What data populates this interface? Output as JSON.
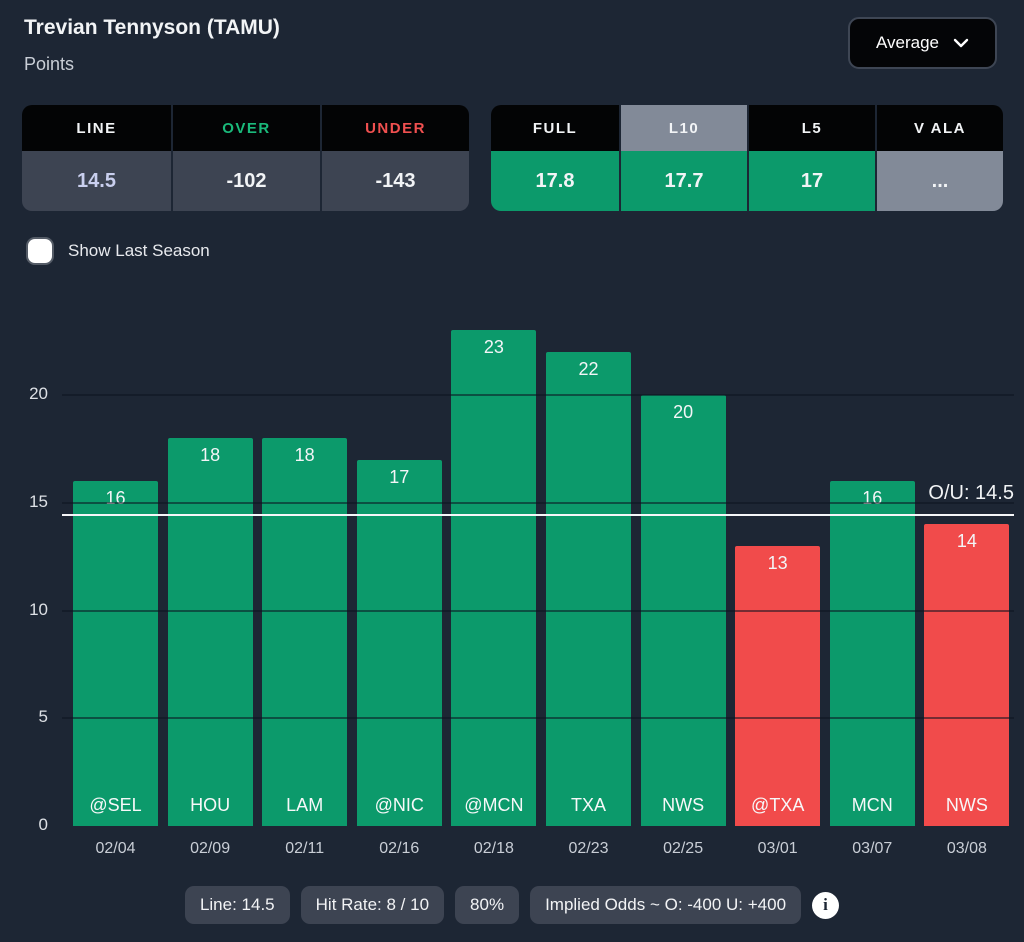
{
  "header": {
    "player": "Trevian Tennyson (TAMU)",
    "stat": "Points",
    "dropdown_label": "Average"
  },
  "odds_table": {
    "columns": [
      {
        "label": "LINE",
        "label_color": "#f2f4f6",
        "value": "14.5",
        "value_color": "#c9cfee"
      },
      {
        "label": "OVER",
        "label_color": "#1aba7b",
        "value": "-102",
        "value_color": "#f2f4f6"
      },
      {
        "label": "UNDER",
        "label_color": "#f05050",
        "value": "-143",
        "value_color": "#f2f4f6"
      }
    ]
  },
  "splits_table": {
    "columns": [
      {
        "label": "FULL",
        "selected": false,
        "value": "17.8",
        "value_state": "over"
      },
      {
        "label": "L10",
        "selected": true,
        "value": "17.7",
        "value_state": "over"
      },
      {
        "label": "L5",
        "selected": false,
        "value": "17",
        "value_state": "over"
      },
      {
        "label": "V ALA",
        "selected": false,
        "value": "...",
        "value_state": "muted"
      }
    ]
  },
  "toggle": {
    "label": "Show Last Season",
    "checked": false
  },
  "chart_data": {
    "type": "bar",
    "title": "Trevian Tennyson (TAMU) — Points by game",
    "categories": [
      "@SEL",
      "HOU",
      "LAM",
      "@NIC",
      "@MCN",
      "TXA",
      "NWS",
      "@TXA",
      "MCN",
      "NWS"
    ],
    "x_dates": [
      "02/04",
      "02/09",
      "02/11",
      "02/16",
      "02/18",
      "02/23",
      "02/25",
      "03/01",
      "03/07",
      "03/08"
    ],
    "values": [
      16,
      18,
      18,
      17,
      23,
      22,
      20,
      13,
      16,
      14
    ],
    "results": [
      "over",
      "over",
      "over",
      "over",
      "over",
      "over",
      "over",
      "under",
      "over",
      "under"
    ],
    "prop_line": 14.5,
    "prop_line_label": "O/U: 14.5",
    "yticks": [
      0,
      5,
      10,
      15,
      20
    ],
    "ylim": [
      0,
      24.5
    ],
    "xlabel": "",
    "ylabel": "",
    "legend": "none",
    "grid": "horizontal",
    "over_color": "#0c9a6b",
    "under_color": "#f14b4b",
    "line_color": "#f5f6f8"
  },
  "footer": {
    "badges": [
      "Line: 14.5",
      "Hit Rate: 8 / 10",
      "80%",
      "Implied Odds ~ O: -400 U: +400"
    ],
    "info_icon": "i"
  },
  "colors": {
    "background": "#1d2634",
    "table_header_bg": "#030405",
    "table_value_bg": "#3d4452",
    "selected_tab_bg": "#828a98",
    "muted_cell_bg": "#828a98",
    "over_green": "#0c9a6b",
    "under_red": "#f14b4b",
    "over_text": "#1aba7b",
    "under_text": "#f05050",
    "line_value_text": "#c9cfee"
  }
}
